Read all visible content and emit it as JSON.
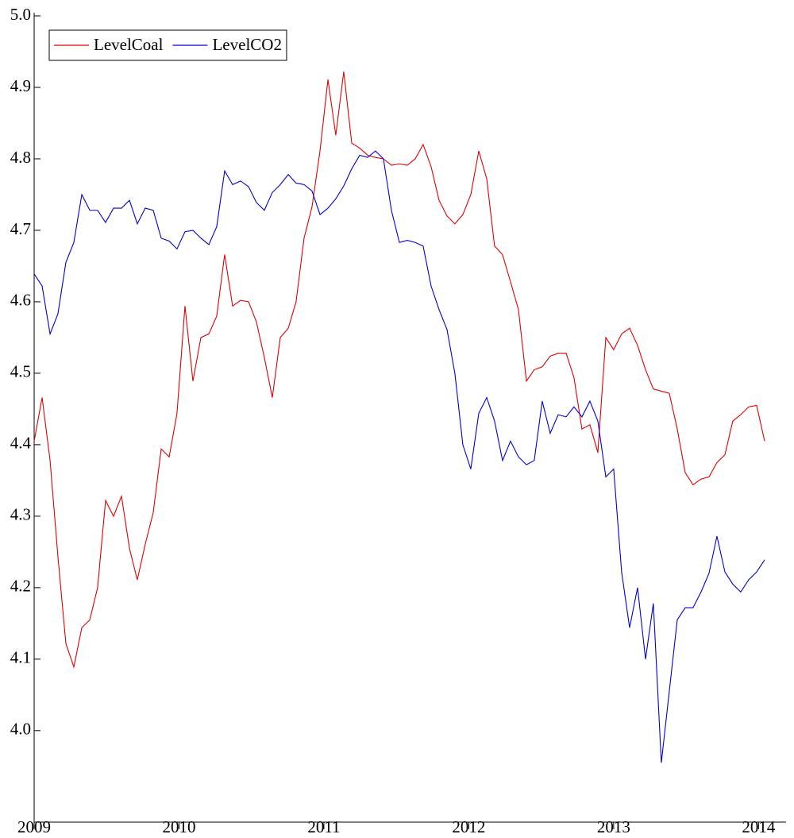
{
  "chart_data": {
    "type": "line",
    "x": [
      2009.0,
      2009.055,
      2009.11,
      2009.164,
      2009.219,
      2009.274,
      2009.329,
      2009.384,
      2009.438,
      2009.493,
      2009.548,
      2009.603,
      2009.658,
      2009.712,
      2009.767,
      2009.822,
      2009.877,
      2009.932,
      2009.986,
      2010.041,
      2010.096,
      2010.151,
      2010.206,
      2010.26,
      2010.315,
      2010.37,
      2010.425,
      2010.48,
      2010.534,
      2010.589,
      2010.644,
      2010.699,
      2010.754,
      2010.808,
      2010.863,
      2010.918,
      2010.973,
      2011.028,
      2011.082,
      2011.137,
      2011.192,
      2011.247,
      2011.302,
      2011.356,
      2011.411,
      2011.466,
      2011.521,
      2011.576,
      2011.63,
      2011.685,
      2011.74,
      2011.795,
      2011.85,
      2011.904,
      2011.959,
      2012.014,
      2012.069,
      2012.124,
      2012.178,
      2012.233,
      2012.288,
      2012.343,
      2012.398,
      2012.452,
      2012.507,
      2012.562,
      2012.617,
      2012.672,
      2012.726,
      2012.781,
      2012.836,
      2012.891,
      2012.946,
      2013.0,
      2013.055,
      2013.11,
      2013.165,
      2013.22,
      2013.274,
      2013.329,
      2013.384,
      2013.439,
      2013.494,
      2013.548,
      2013.603,
      2013.658,
      2013.713,
      2013.768,
      2013.822,
      2013.877,
      2013.932,
      2013.987,
      2014.042
    ],
    "series": [
      {
        "name": "LevelCoal",
        "color": "#e00000",
        "values": [
          4.405,
          4.466,
          4.378,
          4.244,
          4.122,
          4.089,
          4.144,
          4.155,
          4.2,
          4.322,
          4.3,
          4.328,
          4.255,
          4.211,
          4.261,
          4.305,
          4.394,
          4.383,
          4.444,
          4.594,
          4.489,
          4.55,
          4.555,
          4.58,
          4.666,
          4.594,
          4.602,
          4.6,
          4.572,
          4.522,
          4.466,
          4.55,
          4.563,
          4.6,
          4.689,
          4.733,
          4.811,
          4.911,
          4.833,
          4.922,
          4.822,
          4.815,
          4.805,
          4.802,
          4.8,
          4.791,
          4.793,
          4.791,
          4.8,
          4.82,
          4.789,
          4.742,
          4.72,
          4.709,
          4.722,
          4.75,
          4.811,
          4.772,
          4.678,
          4.666,
          4.628,
          4.589,
          4.489,
          4.505,
          4.509,
          4.524,
          4.528,
          4.528,
          4.494,
          4.422,
          4.428,
          4.389,
          4.55,
          4.533,
          4.555,
          4.563,
          4.539,
          4.505,
          4.478,
          4.475,
          4.472,
          4.422,
          4.361,
          4.344,
          4.352,
          4.355,
          4.375,
          4.386,
          4.433,
          4.442,
          4.453,
          4.455,
          4.405
        ]
      },
      {
        "name": "LevelCO2",
        "color": "#0000d0",
        "values": [
          4.639,
          4.622,
          4.555,
          4.583,
          4.655,
          4.683,
          4.75,
          4.728,
          4.728,
          4.711,
          4.731,
          4.731,
          4.742,
          4.709,
          4.731,
          4.728,
          4.689,
          4.685,
          4.674,
          4.698,
          4.7,
          4.689,
          4.68,
          4.705,
          4.783,
          4.764,
          4.769,
          4.761,
          4.739,
          4.728,
          4.753,
          4.764,
          4.778,
          4.766,
          4.764,
          4.755,
          4.722,
          4.731,
          4.744,
          4.762,
          4.786,
          4.805,
          4.802,
          4.811,
          4.8,
          4.728,
          4.683,
          4.686,
          4.683,
          4.678,
          4.622,
          4.589,
          4.561,
          4.5,
          4.4,
          4.366,
          4.444,
          4.466,
          4.433,
          4.378,
          4.405,
          4.383,
          4.372,
          4.378,
          4.461,
          4.416,
          4.442,
          4.439,
          4.453,
          4.439,
          4.461,
          4.433,
          4.355,
          4.366,
          4.222,
          4.144,
          4.2,
          4.1,
          4.178,
          3.955,
          4.055,
          4.155,
          4.172,
          4.172,
          4.194,
          4.22,
          4.272,
          4.222,
          4.205,
          4.194,
          4.211,
          4.222,
          4.239
        ]
      }
    ],
    "xlim": [
      2009,
      2014.19
    ],
    "xticks": [
      2009,
      2010,
      2011,
      2012,
      2013,
      2014
    ],
    "ylim": [
      3.872,
      5.0
    ],
    "yticks": [
      {
        "value": 5.0,
        "label": "5.0"
      },
      4.9,
      4.8,
      4.7,
      4.6,
      4.5,
      4.4,
      4.3,
      4.2,
      4.1,
      {
        "value": 4.0,
        "label": "4.0"
      }
    ],
    "legend": "upper left",
    "grid": false
  }
}
